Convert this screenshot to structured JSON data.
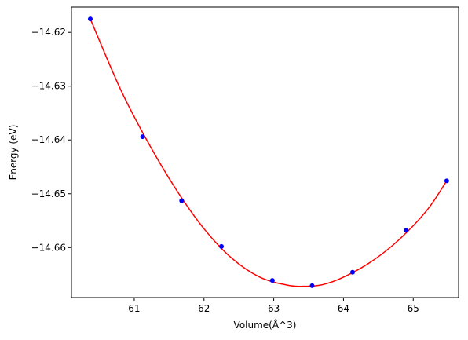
{
  "chart_data": {
    "type": "scatter",
    "title": "",
    "xlabel": "Volume(Å^3)",
    "ylabel": "Energy (eV)",
    "xlim": [
      60.1,
      65.65
    ],
    "ylim": [
      -14.6693,
      -14.6153
    ],
    "xticks": [
      61,
      62,
      63,
      64,
      65
    ],
    "xtick_labels": [
      "61",
      "62",
      "63",
      "64",
      "65"
    ],
    "yticks": [
      -14.62,
      -14.63,
      -14.64,
      -14.65,
      -14.66
    ],
    "ytick_labels": [
      "−14.62",
      "−14.63",
      "−14.64",
      "−14.65",
      "−14.66"
    ],
    "grid": false,
    "series": [
      {
        "kind": "points",
        "color": "#0000ff",
        "x": [
          60.37,
          61.12,
          61.68,
          62.25,
          62.98,
          63.55,
          64.13,
          64.9,
          65.48
        ],
        "y": [
          -14.6175,
          -14.6394,
          -14.6513,
          -14.6598,
          -14.6661,
          -14.6671,
          -14.6646,
          -14.6568,
          -14.6476
        ]
      },
      {
        "kind": "fit-curve",
        "color": "#ff0000",
        "x": [
          60.37,
          60.8,
          61.2,
          61.6,
          62.0,
          62.4,
          62.8,
          63.2,
          63.45,
          63.7,
          64.0,
          64.4,
          64.8,
          65.2,
          65.48
        ],
        "y": [
          -14.6175,
          -14.6305,
          -14.6405,
          -14.6492,
          -14.6565,
          -14.662,
          -14.6655,
          -14.667,
          -14.6672,
          -14.6669,
          -14.6655,
          -14.6626,
          -14.6585,
          -14.653,
          -14.6476
        ]
      }
    ]
  }
}
